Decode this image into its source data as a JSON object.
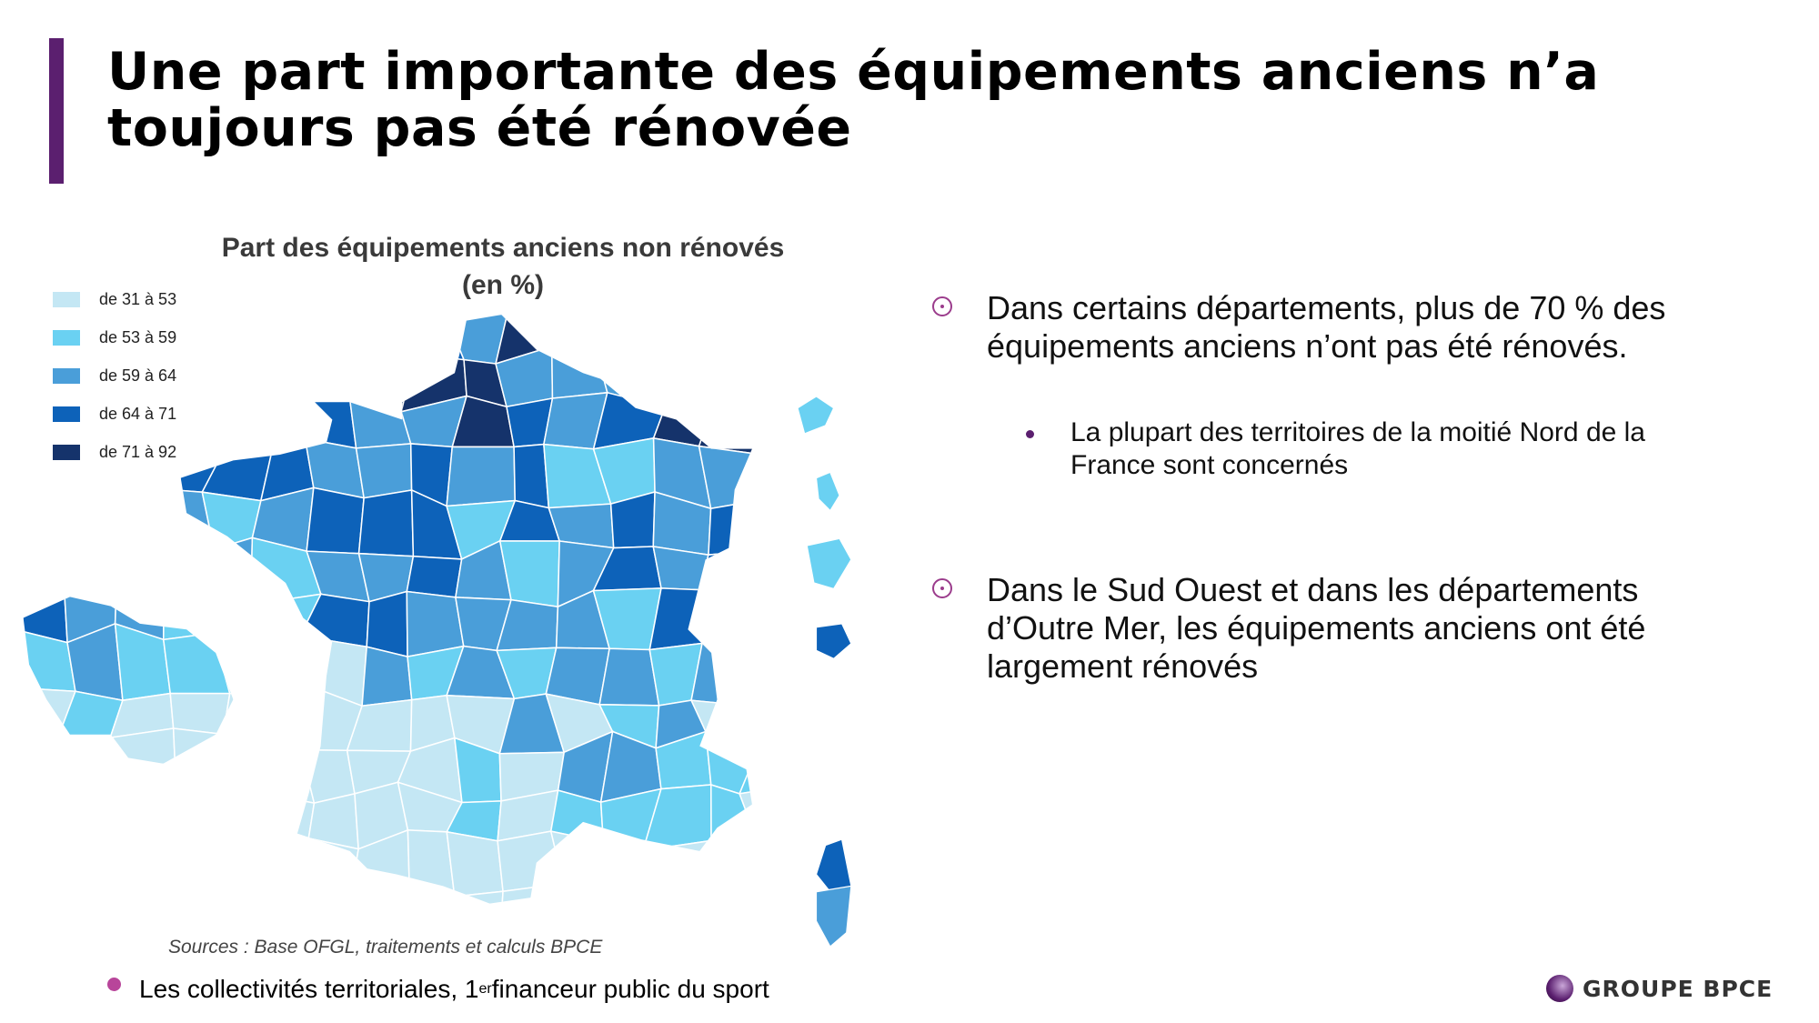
{
  "title": "Une part importante des équipements anciens n’a toujours pas été rénovée",
  "chart": {
    "title_line1": "Part des équipements anciens non rénovés",
    "title_line2": "(en %)",
    "legend": [
      {
        "label": "de 31 à 53",
        "color": "#c4e7f4"
      },
      {
        "label": "de 53 à 59",
        "color": "#6ad1f2"
      },
      {
        "label": "de 59 à 64",
        "color": "#4a9ed9"
      },
      {
        "label": "de 64 à 71",
        "color": "#0d62b9"
      },
      {
        "label": "de 71 à 92",
        "color": "#15336b"
      }
    ],
    "sources": "Sources : Base OFGL, traitements et calculs BPCE"
  },
  "chart_data": {
    "type": "choropleth-map",
    "title": "Part des équipements anciens non rénovés (en %)",
    "classes": [
      "de 31 à 53",
      "de 53 à 59",
      "de 59 à 64",
      "de 64 à 71",
      "de 71 à 92"
    ]
  },
  "bullets": [
    {
      "text": "Dans certains départements, plus de 70 % des équipements anciens n’ont pas été rénovés.",
      "sub": "La plupart des territoires de la moitié Nord de la France sont concernés"
    },
    {
      "text": "Dans le Sud Ouest et dans les départements d’Outre Mer, les équipements anciens ont été largement rénovés"
    }
  ],
  "footer": {
    "text_before": "Les collectivités territoriales, 1",
    "sup": "er",
    "text_after": " financeur public du sport"
  },
  "logo": "GROUPE BPCE",
  "colors": {
    "accent": "#5b1f6f",
    "bullet": "#9b3c8c"
  }
}
